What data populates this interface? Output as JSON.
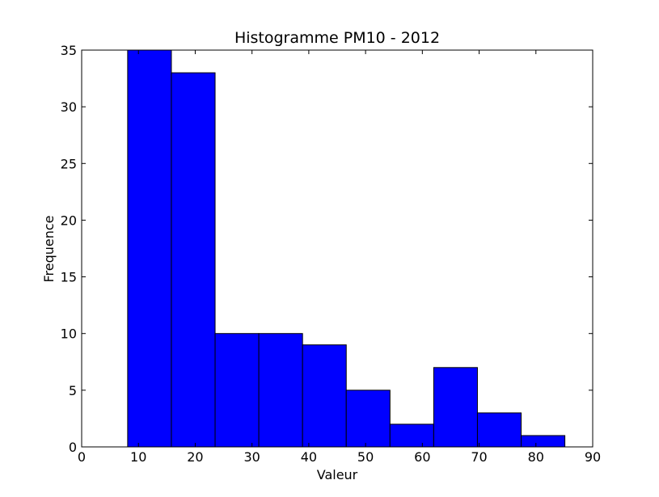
{
  "chart_data": {
    "type": "bar",
    "title": "Histogramme PM10 - 2012",
    "xlabel": "Valeur",
    "ylabel": "Frequence",
    "xlim": [
      0,
      90
    ],
    "ylim": [
      0,
      35
    ],
    "xticks": [
      0,
      10,
      20,
      30,
      40,
      50,
      60,
      70,
      80,
      90
    ],
    "yticks": [
      0,
      5,
      10,
      15,
      20,
      25,
      30,
      35
    ],
    "grid": false,
    "bins": [
      {
        "x0": 8.1,
        "x1": 15.8,
        "count": 35
      },
      {
        "x0": 15.8,
        "x1": 23.5,
        "count": 33
      },
      {
        "x0": 23.5,
        "x1": 31.2,
        "count": 10
      },
      {
        "x0": 31.2,
        "x1": 38.9,
        "count": 10
      },
      {
        "x0": 38.9,
        "x1": 46.6,
        "count": 9
      },
      {
        "x0": 46.6,
        "x1": 54.3,
        "count": 5
      },
      {
        "x0": 54.3,
        "x1": 62.0,
        "count": 2
      },
      {
        "x0": 62.0,
        "x1": 69.7,
        "count": 7
      },
      {
        "x0": 69.7,
        "x1": 77.4,
        "count": 3
      },
      {
        "x0": 77.4,
        "x1": 85.1,
        "count": 1
      }
    ],
    "colors": {
      "bar_fill": "#0000ff",
      "bar_edge": "#000000",
      "axes": "#000000"
    }
  }
}
